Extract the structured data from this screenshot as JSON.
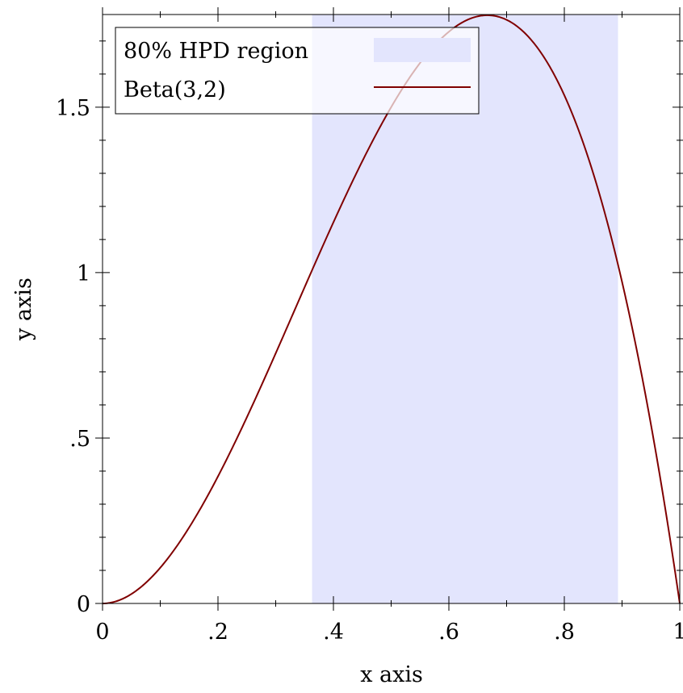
{
  "chart_data": {
    "type": "area",
    "xlabel": "x axis",
    "ylabel": "y axis",
    "xlim": [
      0,
      1
    ],
    "ylim": [
      0,
      1.78
    ],
    "x_major_ticks": [
      0,
      0.2,
      0.4,
      0.6,
      0.8,
      1
    ],
    "x_tick_labels": [
      "0",
      ".2",
      ".4",
      ".6",
      ".8",
      "1"
    ],
    "x_minor_ticks": [
      0.1,
      0.3,
      0.5,
      0.7,
      0.9
    ],
    "y_major_ticks": [
      0,
      0.5,
      1,
      1.5
    ],
    "y_tick_labels": [
      "0",
      ".5",
      "1",
      "1.5"
    ],
    "y_minor_ticks": [
      0.1,
      0.2,
      0.3,
      0.4,
      0.6,
      0.7,
      0.8,
      0.9,
      1.1,
      1.2,
      1.3,
      1.4,
      1.6,
      1.7
    ],
    "grid": false,
    "legend_position": "top-left",
    "series": [
      {
        "name": "80% HPD region",
        "kind": "shaded-interval",
        "x_range": [
          0.363,
          0.893
        ],
        "y_range": [
          0,
          1.78
        ],
        "color": "#e3e5fd"
      },
      {
        "name": "Beta(3,2)",
        "kind": "line",
        "function": "12*x^2*(1-x)",
        "color": "#800000",
        "x": [
          0,
          0.05,
          0.1,
          0.15,
          0.2,
          0.25,
          0.3,
          0.35,
          0.4,
          0.45,
          0.5,
          0.55,
          0.6,
          0.65,
          0.6667,
          0.7,
          0.75,
          0.8,
          0.85,
          0.9,
          0.95,
          1
        ],
        "y": [
          0,
          0.0285,
          0.108,
          0.2295,
          0.384,
          0.5625,
          0.756,
          0.9555,
          1.152,
          1.3365,
          1.5,
          1.6335,
          1.728,
          1.7745,
          1.7778,
          1.764,
          1.6875,
          1.536,
          1.3005,
          0.972,
          0.5415,
          0
        ]
      }
    ]
  }
}
